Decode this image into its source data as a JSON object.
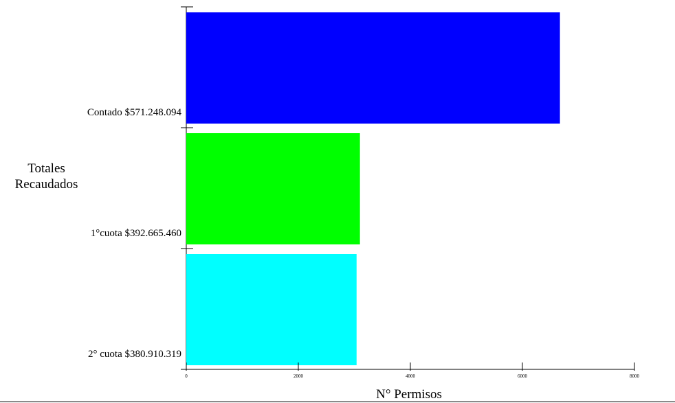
{
  "chart_data": {
    "type": "bar",
    "orientation": "horizontal",
    "categories": [
      "Contado $571.248.094",
      "1°cuota $392.665.460",
      "2° cuota $380.910.319"
    ],
    "values": [
      6670,
      3100,
      3040
    ],
    "colors": [
      "#0000ff",
      "#00ff00",
      "#00ffff"
    ],
    "ylabel_lines": [
      "Totales",
      "Recaudados"
    ],
    "xlabel": "N° Permisos",
    "x_ticks": [
      "0",
      "2000",
      "4000",
      "6000",
      "8000"
    ],
    "xlim": [
      0,
      8000
    ],
    "grid": false,
    "legend": "none"
  }
}
